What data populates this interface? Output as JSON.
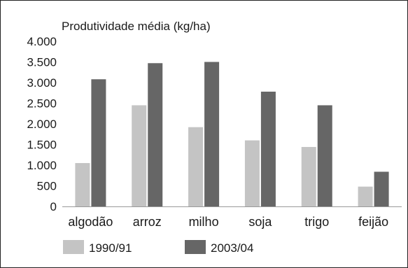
{
  "chart_data": {
    "type": "bar",
    "title": "Produtividade média (kg/ha)",
    "xlabel": "",
    "ylabel": "",
    "categories": [
      "algodão",
      "arroz",
      "milho",
      "soja",
      "trigo",
      "feijão"
    ],
    "series": [
      {
        "name": "1990/91",
        "values": [
          1050,
          2450,
          1920,
          1600,
          1440,
          480
        ],
        "color": "#c4c4c4"
      },
      {
        "name": "2003/04",
        "values": [
          3080,
          3470,
          3500,
          2780,
          2450,
          840
        ],
        "color": "#666666"
      }
    ],
    "ylim": [
      0,
      4000
    ],
    "yticks": [
      {
        "value": 0,
        "label": "0"
      },
      {
        "value": 500,
        "label": "500"
      },
      {
        "value": 1000,
        "label": "1.000"
      },
      {
        "value": 1500,
        "label": "1.500"
      },
      {
        "value": 2000,
        "label": "2.000"
      },
      {
        "value": 2500,
        "label": "2.500"
      },
      {
        "value": 3000,
        "label": "3.000"
      },
      {
        "value": 3500,
        "label": "3.500"
      },
      {
        "value": 4000,
        "label": "4.000"
      }
    ],
    "grid": false,
    "legend": "bottom-left"
  }
}
